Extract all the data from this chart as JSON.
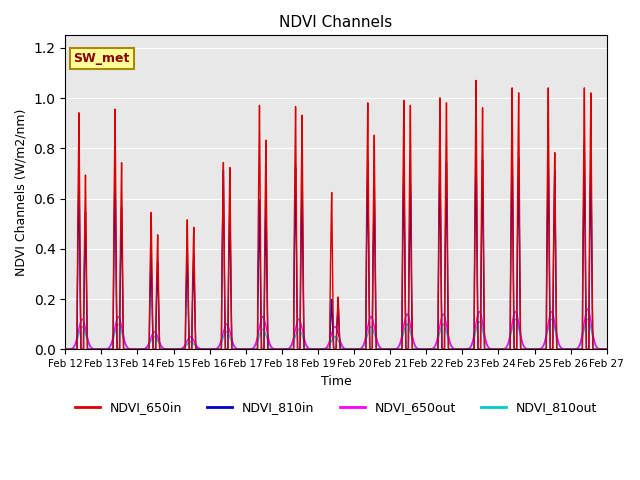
{
  "title": "NDVI Channels",
  "xlabel": "Time",
  "ylabel": "NDVI Channels (W/m2/nm)",
  "ylim": [
    0.0,
    1.25
  ],
  "xlim": [
    0,
    15
  ],
  "background_color": "#e8e8e8",
  "legend_label": "SW_met",
  "series": {
    "NDVI_650in": {
      "color": "#dd0000",
      "lw": 1.0
    },
    "NDVI_810in": {
      "color": "#0000cc",
      "lw": 1.0
    },
    "NDVI_650out": {
      "color": "#ff00ff",
      "lw": 1.0
    },
    "NDVI_810out": {
      "color": "#00cccc",
      "lw": 1.0
    }
  },
  "xtick_labels": [
    "Feb 12",
    "Feb 13",
    "Feb 14",
    "Feb 15",
    "Feb 16",
    "Feb 17",
    "Feb 18",
    "Feb 19",
    "Feb 20",
    "Feb 21",
    "Feb 22",
    "Feb 23",
    "Feb 24",
    "Feb 25",
    "Feb 26",
    "Feb 27"
  ],
  "xtick_positions": [
    0,
    1,
    2,
    3,
    4,
    5,
    6,
    7,
    8,
    9,
    10,
    11,
    12,
    13,
    14,
    15
  ],
  "day_peaks_650in_main": [
    0.95,
    0.965,
    0.55,
    0.52,
    0.75,
    0.98,
    0.975,
    0.63,
    0.99,
    1.0,
    1.01,
    1.08,
    1.05,
    1.05,
    1.05
  ],
  "day_peaks_650in_sec": [
    0.7,
    0.75,
    0.46,
    0.49,
    0.73,
    0.84,
    0.94,
    0.21,
    0.86,
    0.98,
    0.99,
    0.97,
    1.03,
    0.79,
    1.03
  ],
  "day_peaks_810in_main": [
    0.7,
    0.73,
    0.38,
    0.39,
    0.72,
    0.6,
    0.73,
    0.2,
    0.75,
    0.75,
    0.76,
    0.81,
    0.8,
    0.78,
    0.79
  ],
  "day_peaks_810in_sec": [
    0.55,
    0.57,
    0.35,
    0.38,
    0.59,
    0.59,
    0.68,
    0.18,
    0.66,
    0.67,
    0.75,
    0.76,
    0.77,
    0.72,
    0.77
  ],
  "day_peaks_650out": [
    0.12,
    0.13,
    0.07,
    0.05,
    0.1,
    0.13,
    0.12,
    0.09,
    0.13,
    0.14,
    0.14,
    0.15,
    0.15,
    0.15,
    0.16
  ],
  "day_peaks_810out": [
    0.09,
    0.1,
    0.05,
    0.03,
    0.07,
    0.08,
    0.08,
    0.05,
    0.09,
    0.1,
    0.1,
    0.11,
    0.12,
    0.12,
    0.12
  ]
}
